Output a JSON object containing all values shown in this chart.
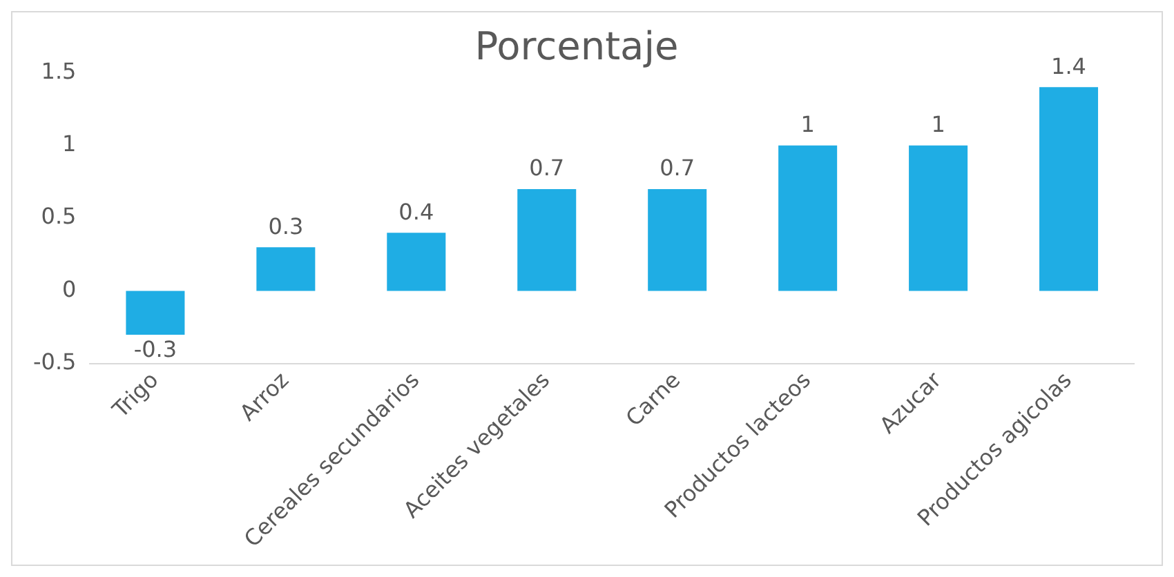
{
  "chart_data": {
    "type": "bar",
    "title": "Porcentaje",
    "categories": [
      "Trigo",
      "Arroz",
      "Cereales secundarios",
      "Aceites vegetales",
      "Carne",
      "Productos lacteos",
      "Azucar",
      "Productos agicolas"
    ],
    "values": [
      -0.3,
      0.3,
      0.4,
      0.7,
      0.7,
      1,
      1,
      1.4
    ],
    "color": "#1fade4",
    "ylim": [
      -0.5,
      1.5
    ],
    "yticks": [
      -0.5,
      0,
      0.5,
      1,
      1.5
    ],
    "grid": false,
    "legend": false,
    "data_labels": true
  }
}
